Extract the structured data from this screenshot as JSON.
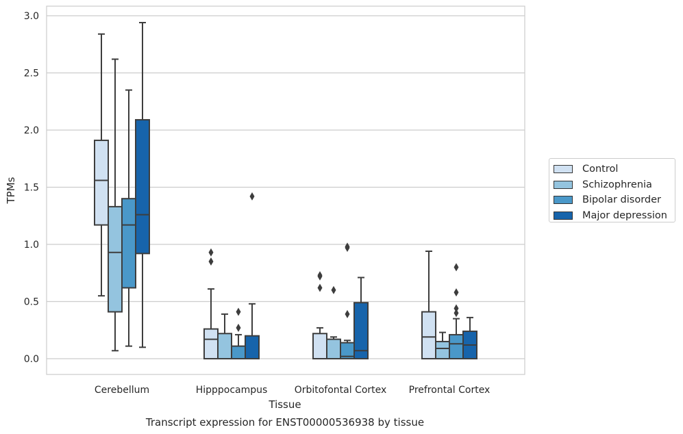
{
  "chart_data": {
    "type": "box",
    "title": "Transcript expression for ENST00000536938 by tissue",
    "xlabel": "Tissue",
    "ylabel": "TPMs",
    "ylim": [
      -0.14,
      3.08
    ],
    "yticks": [
      "0.0",
      "0.5",
      "1.0",
      "1.5",
      "2.0",
      "2.5",
      "3.0"
    ],
    "grid": true,
    "legend_position": "right",
    "categories": [
      "Cerebellum",
      "Hipppocampus",
      "Orbitofontal Cortex",
      "Prefrontal Cortex"
    ],
    "series": [
      {
        "name": "Control",
        "color": "#d0e1f2",
        "boxes": [
          {
            "whisker_low": 0.55,
            "q1": 1.17,
            "median": 1.56,
            "q3": 1.91,
            "whisker_high": 2.84,
            "outliers": []
          },
          {
            "whisker_low": 0.0,
            "q1": 0.0,
            "median": 0.17,
            "q3": 0.26,
            "whisker_high": 0.61,
            "outliers": [
              0.85,
              0.93
            ]
          },
          {
            "whisker_low": 0.0,
            "q1": 0.0,
            "median": 0.0,
            "q3": 0.22,
            "whisker_high": 0.27,
            "outliers": [
              0.62,
              0.72,
              0.73
            ]
          },
          {
            "whisker_low": 0.0,
            "q1": 0.0,
            "median": 0.19,
            "q3": 0.41,
            "whisker_high": 0.94,
            "outliers": []
          }
        ]
      },
      {
        "name": "Schizophrenia",
        "color": "#94c4df",
        "boxes": [
          {
            "whisker_low": 0.07,
            "q1": 0.41,
            "median": 0.93,
            "q3": 1.33,
            "whisker_high": 2.62,
            "outliers": []
          },
          {
            "whisker_low": 0.0,
            "q1": 0.0,
            "median": 0.0,
            "q3": 0.22,
            "whisker_high": 0.39,
            "outliers": []
          },
          {
            "whisker_low": 0.0,
            "q1": 0.0,
            "median": 0.0,
            "q3": 0.17,
            "whisker_high": 0.19,
            "outliers": [
              0.6
            ]
          },
          {
            "whisker_low": 0.0,
            "q1": 0.0,
            "median": 0.09,
            "q3": 0.15,
            "whisker_high": 0.23,
            "outliers": []
          }
        ]
      },
      {
        "name": "Bipolar disorder",
        "color": "#4a98c9",
        "boxes": [
          {
            "whisker_low": 0.11,
            "q1": 0.62,
            "median": 1.17,
            "q3": 1.4,
            "whisker_high": 2.35,
            "outliers": []
          },
          {
            "whisker_low": 0.0,
            "q1": 0.0,
            "median": 0.0,
            "q3": 0.11,
            "whisker_high": 0.21,
            "outliers": [
              0.27,
              0.41
            ]
          },
          {
            "whisker_low": 0.0,
            "q1": 0.0,
            "median": 0.02,
            "q3": 0.14,
            "whisker_high": 0.16,
            "outliers": [
              0.39,
              0.97,
              0.98
            ]
          },
          {
            "whisker_low": 0.0,
            "q1": 0.0,
            "median": 0.13,
            "q3": 0.21,
            "whisker_high": 0.35,
            "outliers": [
              0.4,
              0.44,
              0.58,
              0.8
            ]
          }
        ]
      },
      {
        "name": "Major depression",
        "color": "#1764ab",
        "boxes": [
          {
            "whisker_low": 0.1,
            "q1": 0.92,
            "median": 1.26,
            "q3": 2.09,
            "whisker_high": 2.94,
            "outliers": []
          },
          {
            "whisker_low": 0.0,
            "q1": 0.0,
            "median": 0.0,
            "q3": 0.2,
            "whisker_high": 0.48,
            "outliers": [
              1.42
            ]
          },
          {
            "whisker_low": 0.0,
            "q1": 0.0,
            "median": 0.07,
            "q3": 0.49,
            "whisker_high": 0.71,
            "outliers": []
          },
          {
            "whisker_low": 0.0,
            "q1": 0.0,
            "median": 0.12,
            "q3": 0.24,
            "whisker_high": 0.36,
            "outliers": []
          }
        ]
      }
    ]
  }
}
